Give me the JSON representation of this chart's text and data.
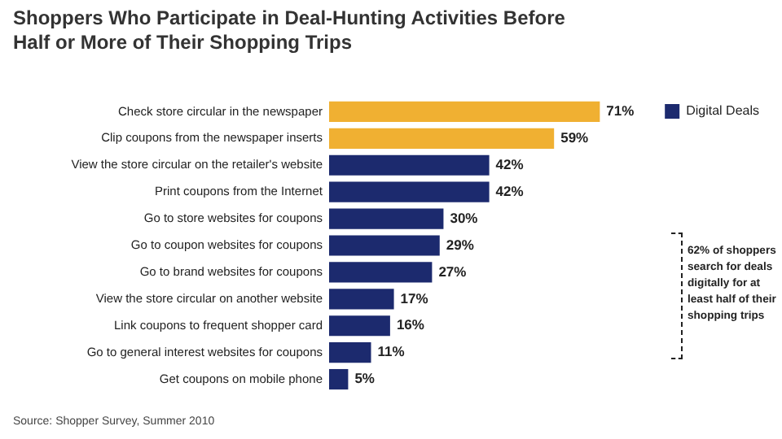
{
  "chart_data": {
    "type": "bar",
    "orientation": "horizontal",
    "title": "Shoppers Who Participate in Deal-Hunting Activities Before Half or More of Their Shopping Trips",
    "categories": [
      "Check store circular in the newspaper",
      "Clip coupons from the newspaper inserts",
      "View the store circular on the retailer's website",
      "Print coupons from the Internet",
      "Go to store websites for coupons",
      "Go to coupon websites for coupons",
      "Go to brand websites for coupons",
      "View the store circular on another website",
      "Link coupons to frequent shopper card",
      "Go to general interest websites for coupons",
      "Get coupons on mobile phone"
    ],
    "series": [
      {
        "color": "#f0b032",
        "values": [
          71,
          59,
          null,
          null,
          null,
          null,
          null,
          null,
          null,
          null,
          null
        ],
        "value_labels": [
          "71%",
          "59%",
          null,
          null,
          null,
          null,
          null,
          null,
          null,
          null,
          null
        ]
      },
      {
        "name": "Digital Deals",
        "color": "#1c2a6e",
        "values": [
          null,
          null,
          42,
          42,
          30,
          29,
          27,
          17,
          16,
          11,
          5
        ],
        "value_labels": [
          null,
          null,
          "42%",
          "42%",
          "30%",
          "29%",
          "27%",
          "17%",
          "16%",
          "11%",
          "5%"
        ]
      }
    ],
    "legend": "right",
    "annotations": [
      "62% of shoppers search for deals digitally for at least half of their shopping trips",
      "Source: Shopper Survey, Summer 2010"
    ]
  }
}
